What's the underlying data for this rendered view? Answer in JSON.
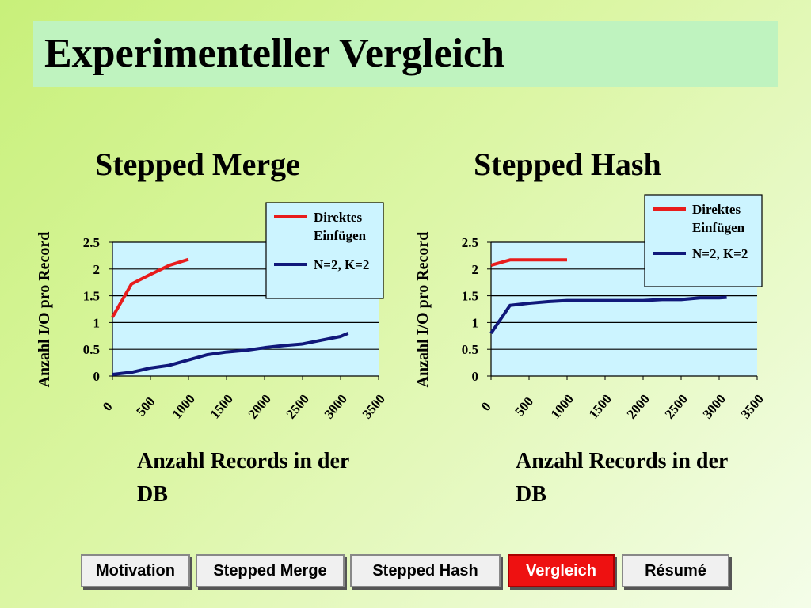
{
  "slide_title": "Experimenteller Vergleich",
  "nav": [
    {
      "label": "Motivation",
      "active": false
    },
    {
      "label": "Stepped Merge",
      "active": false
    },
    {
      "label": "Stepped Hash",
      "active": false
    },
    {
      "label": "Vergleich",
      "active": true
    },
    {
      "label": "Résumé",
      "active": false
    }
  ],
  "colors": {
    "series1": "#e81c1c",
    "series2": "#10187a",
    "plot_bg": "#ccf4ff",
    "legend_bg": "#ccf4ff"
  },
  "chart_data": [
    {
      "type": "line",
      "title": "Stepped Merge",
      "xlabel": "Anzahl Records in der DB",
      "ylabel": "Anzahl I/O pro Record",
      "xlim": [
        0,
        3500
      ],
      "ylim": [
        0,
        2.5
      ],
      "x_ticks": [
        0,
        500,
        1000,
        1500,
        2000,
        2500,
        3000,
        3500
      ],
      "y_ticks": [
        0,
        0.5,
        1,
        1.5,
        2,
        2.5
      ],
      "y_tick_labels": [
        "0",
        "0.5",
        "1",
        "1.5",
        "2",
        "2.5"
      ],
      "grid": true,
      "legend_position": "top-right",
      "series": [
        {
          "name": "Direktes Einfügen",
          "color": "#e81c1c",
          "x": [
            0,
            250,
            500,
            750,
            1000
          ],
          "y": [
            1.1,
            1.72,
            1.9,
            2.07,
            2.18
          ]
        },
        {
          "name": "N=2, K=2",
          "color": "#10187a",
          "x": [
            0,
            250,
            500,
            750,
            1000,
            1250,
            1500,
            1750,
            2000,
            2250,
            2500,
            2750,
            3000,
            3100
          ],
          "y": [
            0.03,
            0.07,
            0.15,
            0.2,
            0.3,
            0.4,
            0.45,
            0.48,
            0.53,
            0.57,
            0.6,
            0.67,
            0.74,
            0.8
          ]
        }
      ]
    },
    {
      "type": "line",
      "title": "Stepped Hash",
      "xlabel": "Anzahl Records in der DB",
      "ylabel": "Anzahl I/O pro Record",
      "xlim": [
        0,
        3500
      ],
      "ylim": [
        0,
        2.5
      ],
      "x_ticks": [
        0,
        500,
        1000,
        1500,
        2000,
        2500,
        3000,
        3500
      ],
      "y_ticks": [
        0,
        0.5,
        1,
        1.5,
        2,
        2.5
      ],
      "y_tick_labels": [
        "0",
        "0.5",
        "1",
        "1.5",
        "2",
        "2.5"
      ],
      "grid": true,
      "legend_position": "top-right",
      "series": [
        {
          "name": "Direktes Einfügen",
          "color": "#e81c1c",
          "x": [
            0,
            250,
            500,
            750,
            1000
          ],
          "y": [
            2.07,
            2.17,
            2.17,
            2.17,
            2.17
          ]
        },
        {
          "name": "N=2, K=2",
          "color": "#10187a",
          "x": [
            0,
            250,
            500,
            750,
            1000,
            1250,
            1500,
            1750,
            2000,
            2250,
            2500,
            2750,
            3000,
            3100
          ],
          "y": [
            0.8,
            1.32,
            1.36,
            1.39,
            1.41,
            1.41,
            1.41,
            1.41,
            1.41,
            1.43,
            1.43,
            1.46,
            1.46,
            1.47
          ]
        }
      ]
    }
  ]
}
